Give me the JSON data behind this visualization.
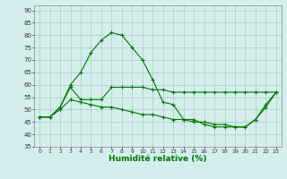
{
  "title": "",
  "xlabel": "Humidité relative (%)",
  "ylabel": "",
  "bg_color": "#d4eeed",
  "grid_color": "#aaccbb",
  "line_color": "#007700",
  "xlim": [
    -0.5,
    23.5
  ],
  "ylim": [
    35,
    92
  ],
  "yticks": [
    35,
    40,
    45,
    50,
    55,
    60,
    65,
    70,
    75,
    80,
    85,
    90
  ],
  "xticks": [
    0,
    1,
    2,
    3,
    4,
    5,
    6,
    7,
    8,
    9,
    10,
    11,
    12,
    13,
    14,
    15,
    16,
    17,
    18,
    19,
    20,
    21,
    22,
    23
  ],
  "line1_x": [
    0,
    1,
    2,
    3,
    4,
    5,
    6,
    7,
    8,
    9,
    10,
    11,
    12,
    13,
    14,
    15,
    16,
    17,
    18,
    19,
    20,
    21,
    22,
    23
  ],
  "line1_y": [
    47,
    47,
    51,
    60,
    65,
    73,
    78,
    81,
    80,
    75,
    70,
    62,
    53,
    52,
    46,
    46,
    44,
    43,
    43,
    43,
    43,
    46,
    52,
    57
  ],
  "line2_x": [
    0,
    1,
    2,
    3,
    4,
    5,
    6,
    7,
    8,
    9,
    10,
    11,
    12,
    13,
    14,
    15,
    16,
    17,
    18,
    19,
    20,
    21,
    22,
    23
  ],
  "line2_y": [
    47,
    47,
    51,
    59,
    54,
    54,
    54,
    59,
    59,
    59,
    59,
    58,
    58,
    57,
    57,
    57,
    57,
    57,
    57,
    57,
    57,
    57,
    57,
    57
  ],
  "line3_x": [
    0,
    1,
    2,
    3,
    4,
    5,
    6,
    7,
    8,
    9,
    10,
    11,
    12,
    13,
    14,
    15,
    16,
    17,
    18,
    19,
    20,
    21,
    22,
    23
  ],
  "line3_y": [
    47,
    47,
    50,
    54,
    53,
    52,
    51,
    51,
    50,
    49,
    48,
    48,
    47,
    46,
    46,
    45,
    45,
    44,
    44,
    43,
    43,
    46,
    51,
    57
  ]
}
